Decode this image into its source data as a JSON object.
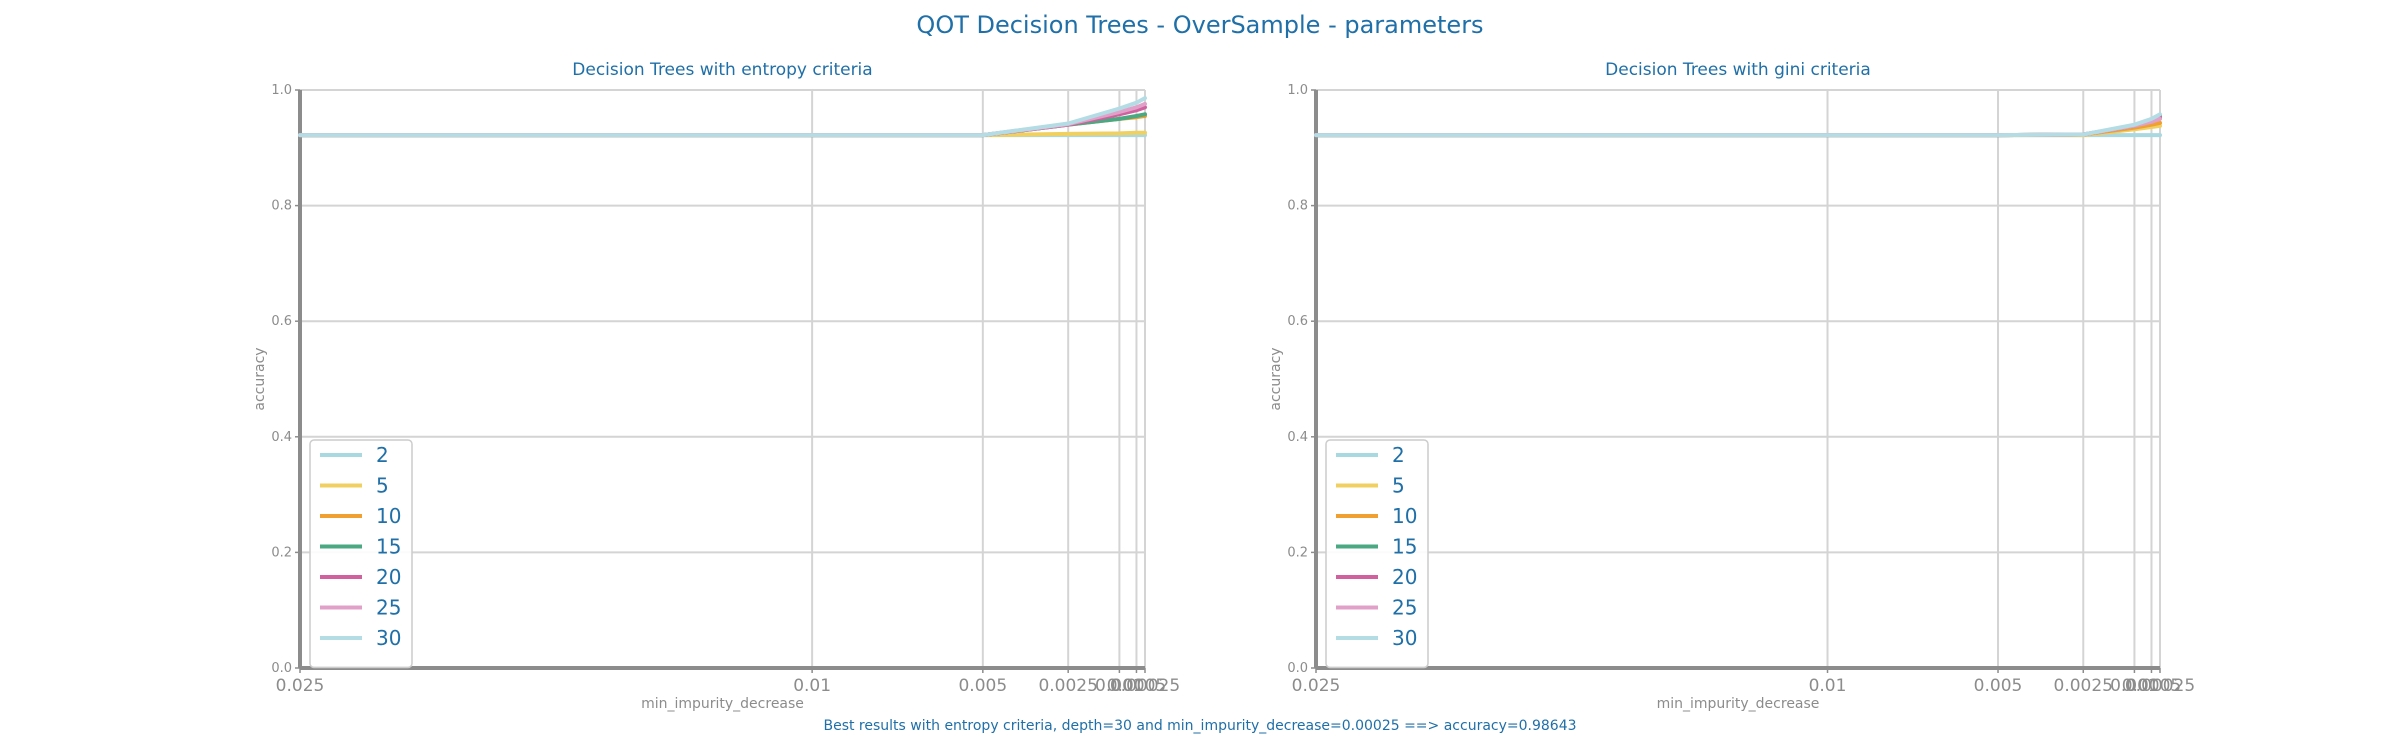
{
  "figure": {
    "title": "QOT Decision Trees - OverSample - parameters",
    "footer": "Best results with entropy criteria, depth=30 and min_impurity_decrease=0.00025 ==> accuracy=0.98643",
    "title_color": "#1f6fa8",
    "axis_text_color": "#8c8c8c",
    "legend_text_color": "#1f6fa8"
  },
  "chart_data": [
    {
      "type": "line",
      "title": "Decision Trees with entropy criteria",
      "xlabel": "min_impurity_decrease",
      "ylabel": "accuracy",
      "x": [
        0.025,
        0.01,
        0.005,
        0.0025,
        0.001,
        0.0005,
        0.00025
      ],
      "x_tick_labels": [
        "0.025",
        "0.01",
        "0.005",
        "0.0025",
        "0.001",
        "0.0005",
        "0.00025"
      ],
      "ylim": [
        0.0,
        1.0
      ],
      "y_ticks": [
        "0.0",
        "0.2",
        "0.4",
        "0.6",
        "0.8",
        "1.0"
      ],
      "grid": true,
      "legend_position": "lower-left",
      "series": [
        {
          "name": "2",
          "color": "#a8d8e0",
          "values": [
            0.922,
            0.922,
            0.922,
            0.922,
            0.922,
            0.922,
            0.922
          ]
        },
        {
          "name": "5",
          "color": "#f0d060",
          "values": [
            0.922,
            0.922,
            0.922,
            0.924,
            0.925,
            0.926,
            0.926
          ]
        },
        {
          "name": "10",
          "color": "#f0a030",
          "values": [
            0.922,
            0.922,
            0.922,
            0.94,
            0.95,
            0.953,
            0.955
          ]
        },
        {
          "name": "15",
          "color": "#4aa882",
          "values": [
            0.922,
            0.922,
            0.922,
            0.94,
            0.95,
            0.955,
            0.958
          ]
        },
        {
          "name": "20",
          "color": "#d0609e",
          "values": [
            0.922,
            0.922,
            0.922,
            0.94,
            0.958,
            0.965,
            0.97
          ]
        },
        {
          "name": "25",
          "color": "#e0a0c8",
          "values": [
            0.922,
            0.922,
            0.922,
            0.941,
            0.962,
            0.97,
            0.976
          ]
        },
        {
          "name": "30",
          "color": "#b4dce4",
          "values": [
            0.922,
            0.922,
            0.922,
            0.942,
            0.968,
            0.978,
            0.986
          ]
        }
      ]
    },
    {
      "type": "line",
      "title": "Decision Trees with gini criteria",
      "xlabel": "min_impurity_decrease",
      "ylabel": "accuracy",
      "x": [
        0.025,
        0.01,
        0.005,
        0.0025,
        0.001,
        0.0005,
        0.00025
      ],
      "x_tick_labels": [
        "0.025",
        "0.01",
        "0.005",
        "0.0025",
        "0.001",
        "0.0005",
        "0.00025"
      ],
      "ylim": [
        0.0,
        1.0
      ],
      "y_ticks": [
        "0.0",
        "0.2",
        "0.4",
        "0.6",
        "0.8",
        "1.0"
      ],
      "grid": true,
      "legend_position": "lower-left",
      "series": [
        {
          "name": "2",
          "color": "#a8d8e0",
          "values": [
            0.922,
            0.922,
            0.922,
            0.922,
            0.922,
            0.922,
            0.922
          ]
        },
        {
          "name": "5",
          "color": "#f0d060",
          "values": [
            0.922,
            0.922,
            0.922,
            0.922,
            0.932,
            0.936,
            0.938
          ]
        },
        {
          "name": "10",
          "color": "#f0a030",
          "values": [
            0.922,
            0.922,
            0.922,
            0.923,
            0.935,
            0.94,
            0.943
          ]
        },
        {
          "name": "15",
          "color": "#4aa882",
          "values": [
            0.922,
            0.922,
            0.922,
            0.923,
            0.938,
            0.948,
            0.955
          ]
        },
        {
          "name": "20",
          "color": "#d0609e",
          "values": [
            0.922,
            0.922,
            0.922,
            0.923,
            0.938,
            0.946,
            0.952
          ]
        },
        {
          "name": "25",
          "color": "#e0a0c8",
          "values": [
            0.922,
            0.922,
            0.922,
            0.923,
            0.938,
            0.945,
            0.95
          ]
        },
        {
          "name": "30",
          "color": "#b4dce4",
          "values": [
            0.922,
            0.922,
            0.922,
            0.923,
            0.94,
            0.95,
            0.958
          ]
        }
      ]
    }
  ]
}
